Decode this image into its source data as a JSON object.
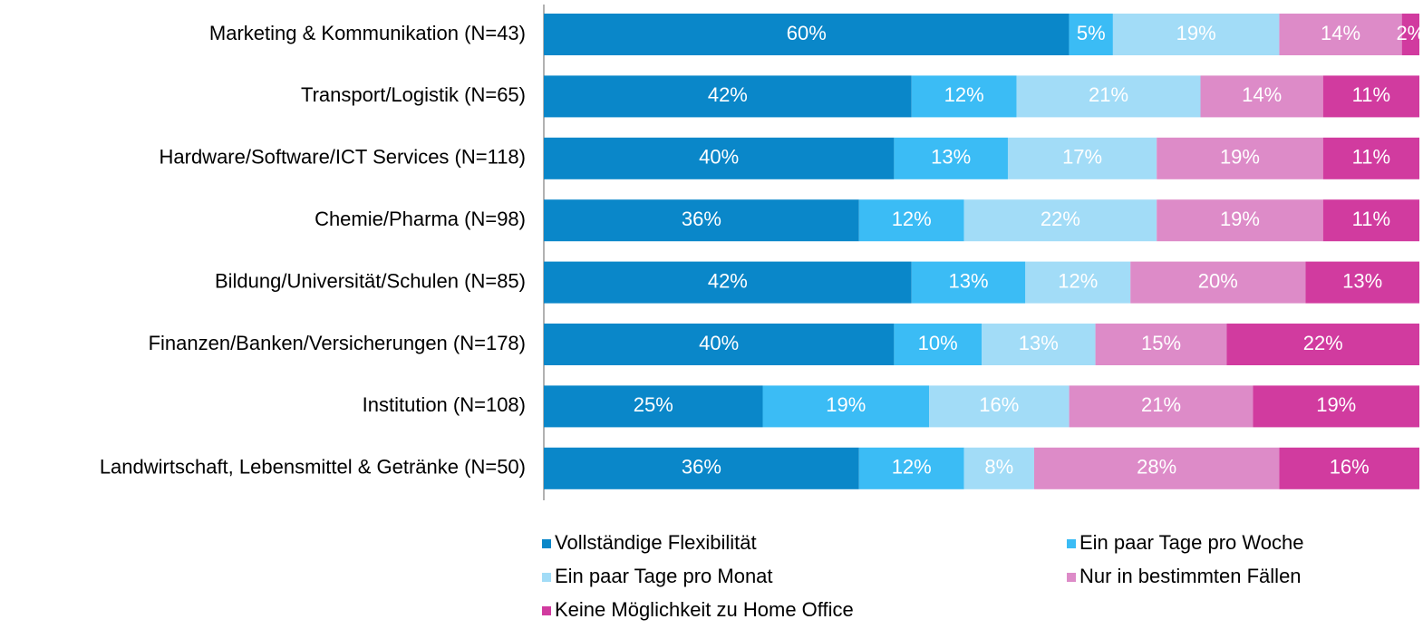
{
  "chart_data": {
    "type": "stacked_bar_horizontal",
    "categories": [
      "Marketing & Kommunikation (N=43)",
      "Transport/Logistik (N=65)",
      "Hardware/Software/ICT Services (N=118)",
      "Chemie/Pharma (N=98)",
      "Bildung/Universität/Schulen (N=85)",
      "Finanzen/Banken/Versicherungen (N=178)",
      "Institution (N=108)",
      "Landwirtschaft, Lebensmittel & Getränke (N=50)"
    ],
    "series": [
      {
        "name": "Vollständige Flexibilität",
        "color": "#0a87c9",
        "values": [
          60,
          42,
          40,
          36,
          42,
          40,
          25,
          36
        ],
        "value_labels": [
          "60%",
          "42%",
          "40%",
          "36%",
          "42%",
          "40%",
          "25%",
          "36%"
        ]
      },
      {
        "name": "Ein paar Tage pro Woche",
        "color": "#3bbcf5",
        "values": [
          5,
          12,
          13,
          12,
          13,
          10,
          19,
          12
        ],
        "value_labels": [
          "5%",
          "12%",
          "13%",
          "12%",
          "13%",
          "10%",
          "19%",
          "12%"
        ]
      },
      {
        "name": "Ein paar Tage pro Monat",
        "color": "#a2dcf7",
        "values": [
          19,
          21,
          17,
          22,
          12,
          13,
          16,
          8
        ],
        "value_labels": [
          "19%",
          "21%",
          "17%",
          "22%",
          "12%",
          "13%",
          "16%",
          "8%"
        ]
      },
      {
        "name": "Nur in bestimmten Fällen",
        "color": "#dd8bc8",
        "values": [
          14,
          14,
          19,
          19,
          20,
          15,
          21,
          28
        ],
        "value_labels": [
          "14%",
          "14%",
          "19%",
          "19%",
          "20%",
          "15%",
          "21%",
          "28%"
        ]
      },
      {
        "name": "Keine Möglichkeit zu Home Office",
        "color": "#d13b9f",
        "values": [
          2,
          11,
          11,
          11,
          13,
          22,
          19,
          16
        ],
        "value_labels": [
          "2%",
          "11%",
          "11%",
          "11%",
          "13%",
          "22%",
          "19%",
          "16%"
        ]
      }
    ],
    "xlim": [
      0,
      100
    ]
  }
}
